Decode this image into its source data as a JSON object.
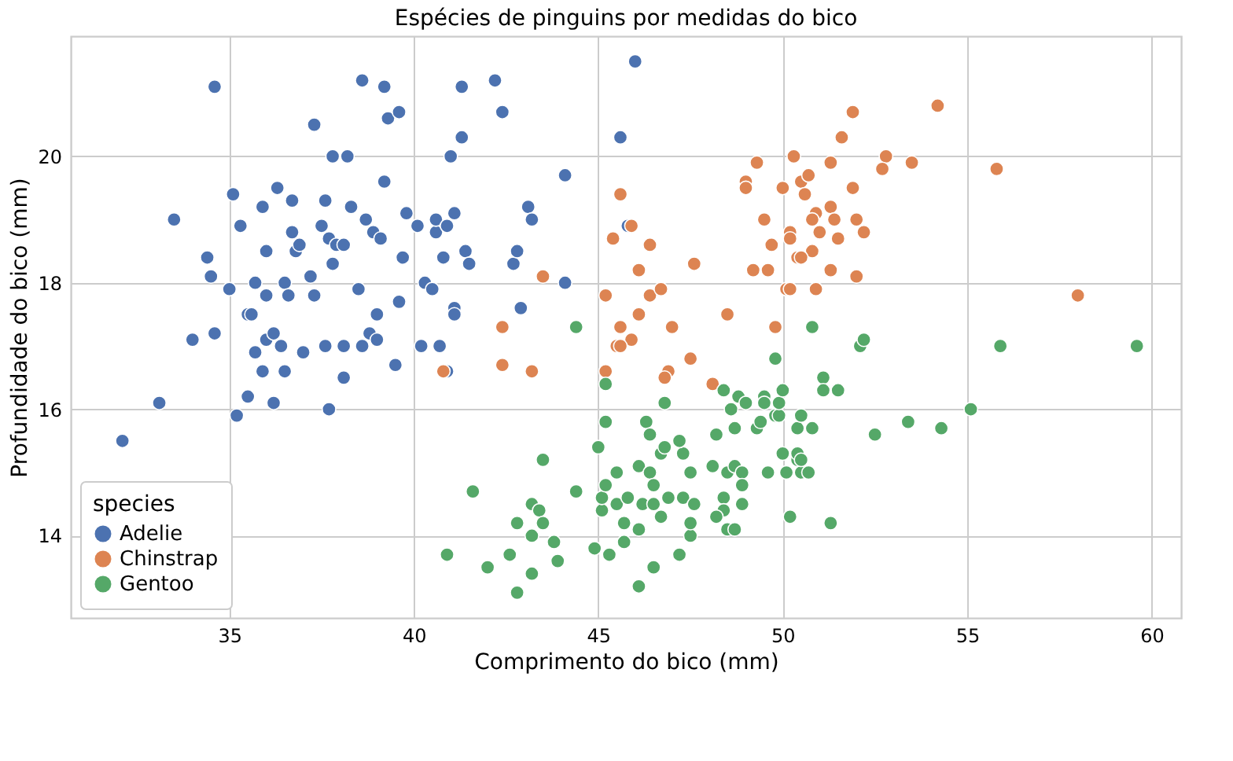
{
  "chart_data": {
    "type": "scatter",
    "title": "Espécies de pinguins por medidas do bico",
    "xlabel": "Comprimento do bico (mm)",
    "ylabel": "Profundidade do bico (mm)",
    "legend_title": "species",
    "legend": "bottom left",
    "grid": true,
    "marker": "circle",
    "xlim": [
      30.7,
      60.8
    ],
    "ylim": [
      12.7,
      21.9
    ],
    "xticks": [
      35,
      40,
      45,
      50,
      55,
      60
    ],
    "yticks": [
      14,
      16,
      18,
      20
    ],
    "series": [
      {
        "name": "Adelie",
        "color": "#4c72b0",
        "x": [
          32.1,
          33.1,
          33.5,
          34.0,
          34.4,
          34.5,
          34.6,
          34.6,
          35.0,
          35.1,
          35.2,
          35.3,
          35.5,
          35.5,
          35.6,
          35.7,
          35.7,
          35.9,
          35.9,
          36.0,
          36.0,
          36.0,
          36.2,
          36.2,
          36.3,
          36.4,
          36.5,
          36.6,
          36.7,
          36.7,
          36.8,
          36.9,
          37.0,
          37.2,
          37.3,
          37.3,
          37.5,
          37.6,
          37.7,
          37.7,
          37.8,
          37.8,
          37.9,
          38.1,
          38.1,
          38.2,
          38.3,
          38.5,
          38.6,
          38.6,
          38.7,
          38.8,
          38.9,
          39.0,
          39.1,
          39.2,
          39.2,
          39.3,
          39.5,
          39.6,
          39.6,
          39.7,
          39.8,
          40.1,
          40.2,
          40.3,
          40.5,
          40.6,
          40.6,
          40.7,
          40.8,
          40.9,
          41.1,
          41.1,
          41.3,
          41.4,
          41.5,
          41.3,
          41.0,
          42.2,
          42.4,
          42.7,
          42.8,
          42.9,
          43.1,
          43.2,
          44.1,
          44.1,
          45.8,
          46.0,
          45.6,
          40.9,
          39.0,
          37.6,
          36.5,
          38.1,
          41.1
        ],
        "values": [
          15.5,
          16.1,
          19.0,
          17.1,
          18.4,
          18.1,
          21.1,
          17.2,
          17.9,
          19.4,
          15.9,
          18.9,
          17.5,
          16.2,
          17.5,
          16.9,
          18.0,
          19.2,
          16.6,
          17.1,
          17.8,
          18.5,
          16.1,
          17.2,
          19.5,
          17.0,
          18.0,
          17.8,
          19.3,
          18.8,
          18.5,
          18.6,
          16.9,
          18.1,
          20.5,
          17.8,
          18.9,
          19.3,
          18.7,
          16.0,
          20.0,
          18.3,
          18.6,
          18.6,
          17.0,
          20.0,
          19.2,
          17.9,
          21.2,
          17.0,
          19.0,
          17.2,
          18.8,
          17.5,
          18.7,
          21.1,
          19.6,
          20.6,
          16.7,
          17.7,
          20.7,
          18.4,
          19.1,
          18.9,
          17.0,
          18.0,
          17.9,
          18.8,
          19.0,
          17.0,
          18.4,
          18.9,
          17.6,
          19.1,
          21.1,
          18.5,
          18.3,
          20.3,
          20.0,
          21.2,
          20.7,
          18.3,
          18.5,
          17.6,
          19.2,
          19.0,
          19.7,
          18.0,
          18.9,
          21.5,
          20.3,
          16.6,
          17.1,
          17.0,
          16.6,
          16.5,
          17.5
        ]
      },
      {
        "name": "Chinstrap",
        "color": "#dd8452",
        "x": [
          45.6,
          45.9,
          45.4,
          46.4,
          46.1,
          47.6,
          45.2,
          46.4,
          46.7,
          46.1,
          48.5,
          49.0,
          49.0,
          49.3,
          50.3,
          50.0,
          49.5,
          49.7,
          50.2,
          49.2,
          49.6,
          50.1,
          50.4,
          40.8,
          42.4,
          42.4,
          43.2,
          45.2,
          45.6,
          45.9,
          45.5,
          45.6,
          47.0,
          46.9,
          46.8,
          47.5,
          48.1,
          49.8,
          43.5,
          51.9,
          51.6,
          54.2,
          52.8,
          52.7,
          53.5,
          51.3,
          55.8,
          58.0,
          50.5,
          50.7,
          50.6,
          51.9,
          50.9,
          51.3,
          50.8,
          51.4,
          52.0,
          51.0,
          51.5,
          52.2,
          50.2,
          50.8,
          50.5,
          51.3,
          52.0,
          50.9,
          50.2
        ],
        "values": [
          19.4,
          18.9,
          18.7,
          18.6,
          18.2,
          18.3,
          17.8,
          17.8,
          17.9,
          17.5,
          17.5,
          19.6,
          19.5,
          19.9,
          20.0,
          19.5,
          19.0,
          18.6,
          18.8,
          18.2,
          18.2,
          17.9,
          18.4,
          16.6,
          17.3,
          16.7,
          16.6,
          16.6,
          17.3,
          17.1,
          17.0,
          17.0,
          17.3,
          16.6,
          16.5,
          16.8,
          16.4,
          17.3,
          18.1,
          20.7,
          20.3,
          20.8,
          20.0,
          19.8,
          19.9,
          19.9,
          19.8,
          17.8,
          19.6,
          19.7,
          19.4,
          19.5,
          19.1,
          19.2,
          19.0,
          19.0,
          19.0,
          18.8,
          18.7,
          18.8,
          18.7,
          18.5,
          18.4,
          18.2,
          18.1,
          17.9,
          17.9
        ]
      },
      {
        "name": "Gentoo",
        "color": "#55a868",
        "x": [
          44.4,
          45.2,
          46.8,
          45.2,
          46.3,
          46.4,
          45.0,
          43.5,
          41.6,
          44.4,
          43.2,
          43.4,
          42.8,
          43.5,
          43.2,
          43.8,
          42.6,
          40.9,
          42.0,
          43.2,
          43.9,
          44.9,
          45.3,
          45.7,
          46.5,
          47.2,
          47.5,
          47.5,
          46.1,
          45.7,
          45.1,
          45.5,
          45.1,
          45.8,
          45.2,
          45.5,
          46.1,
          46.4,
          46.5,
          46.2,
          46.5,
          46.7,
          46.9,
          47.3,
          47.6,
          46.7,
          46.8,
          47.3,
          47.2,
          47.5,
          48.1,
          48.5,
          48.7,
          48.9,
          48.9,
          48.9,
          48.4,
          48.4,
          48.2,
          48.5,
          48.7,
          48.2,
          48.7,
          49.3,
          49.4,
          49.8,
          49.9,
          50.4,
          50.5,
          48.4,
          48.8,
          49.0,
          48.6,
          49.5,
          49.5,
          49.9,
          50.0,
          49.8,
          49.6,
          50.1,
          50.0,
          50.4,
          50.2,
          50.5,
          50.8,
          52.1,
          52.2,
          55.9,
          59.6,
          51.1,
          51.1,
          51.5,
          55.1,
          50.8,
          52.5,
          53.4,
          54.3,
          50.4,
          50.5,
          50.7,
          51.3,
          42.8,
          46.1
        ],
        "values": [
          17.3,
          16.4,
          16.1,
          15.8,
          15.8,
          15.6,
          15.4,
          15.2,
          14.7,
          14.7,
          14.5,
          14.4,
          14.2,
          14.2,
          14.0,
          13.9,
          13.7,
          13.7,
          13.5,
          13.4,
          13.6,
          13.8,
          13.7,
          13.9,
          13.5,
          13.7,
          14.0,
          14.2,
          14.1,
          14.2,
          14.4,
          14.5,
          14.6,
          14.6,
          14.8,
          15.0,
          15.1,
          15.0,
          14.8,
          14.5,
          14.5,
          14.3,
          14.6,
          14.6,
          14.5,
          15.3,
          15.4,
          15.3,
          15.5,
          15.0,
          15.1,
          15.0,
          15.1,
          15.0,
          14.8,
          14.5,
          14.6,
          14.4,
          14.3,
          14.1,
          14.1,
          15.6,
          15.7,
          15.7,
          15.8,
          15.9,
          15.9,
          15.7,
          15.9,
          16.3,
          16.2,
          16.1,
          16.0,
          16.2,
          16.1,
          16.1,
          16.3,
          16.8,
          15.0,
          15.0,
          15.3,
          15.2,
          14.3,
          15.0,
          17.3,
          17.0,
          17.1,
          17.0,
          17.0,
          16.5,
          16.3,
          16.3,
          16.0,
          15.7,
          15.6,
          15.8,
          15.7,
          15.3,
          15.2,
          15.0,
          14.2,
          13.1,
          13.2
        ]
      }
    ]
  }
}
